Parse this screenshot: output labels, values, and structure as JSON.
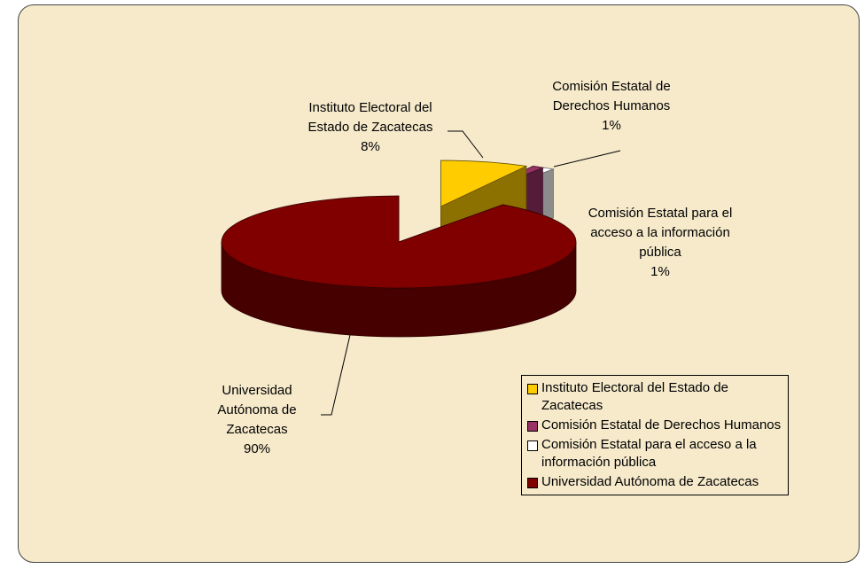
{
  "chart_data": {
    "type": "pie3d",
    "categories": [
      "Instituto Electoral del Estado de Zacatecas",
      "Comisión Estatal de Derechos Humanos",
      "Comisión Estatal para el acceso a la información pública",
      "Universidad Autónoma de Zacatecas"
    ],
    "values": [
      8,
      1,
      1,
      90
    ],
    "value_labels": [
      "8%",
      "1%",
      "1%",
      "90%"
    ],
    "colors": [
      "#ffcc00",
      "#993366",
      "#ffffff",
      "#800000"
    ],
    "legend": "bottom-right"
  }
}
